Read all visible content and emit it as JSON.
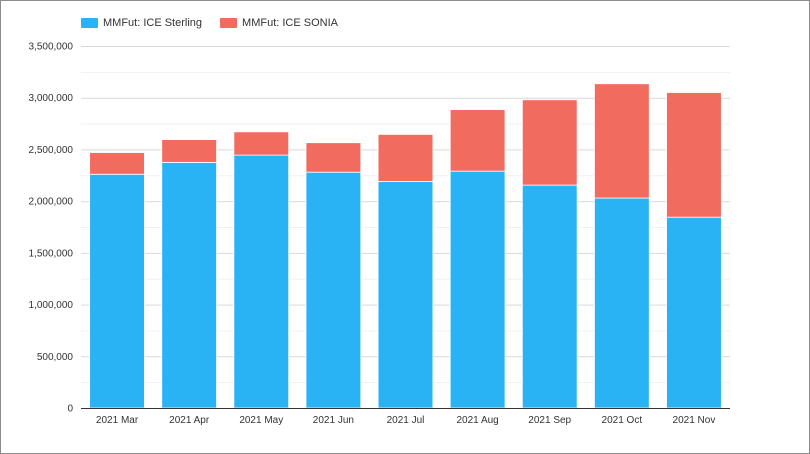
{
  "chart_data": {
    "type": "bar",
    "stacked": true,
    "categories": [
      "2021 Mar",
      "2021 Apr",
      "2021 May",
      "2021 Jun",
      "2021 Jul",
      "2021 Aug",
      "2021 Sep",
      "2021 Oct",
      "2021 Nov"
    ],
    "series": [
      {
        "name": "MMFut: ICE Sterling",
        "color": "#29b3f5",
        "values": [
          2260000,
          2375000,
          2445000,
          2280000,
          2190000,
          2290000,
          2155000,
          2030000,
          1845000
        ]
      },
      {
        "name": "MMFut: ICE SONIA",
        "color": "#f26b5f",
        "values": [
          210000,
          220000,
          225000,
          285000,
          455000,
          595000,
          825000,
          1105000,
          1205000
        ]
      }
    ],
    "y_ticks": [
      "0",
      "500,000",
      "1,000,000",
      "1,500,000",
      "2,000,000",
      "2,500,000",
      "3,000,000",
      "3,500,000"
    ],
    "ylim": [
      0,
      3500000
    ],
    "grid": true,
    "legend_position": "top-left"
  }
}
